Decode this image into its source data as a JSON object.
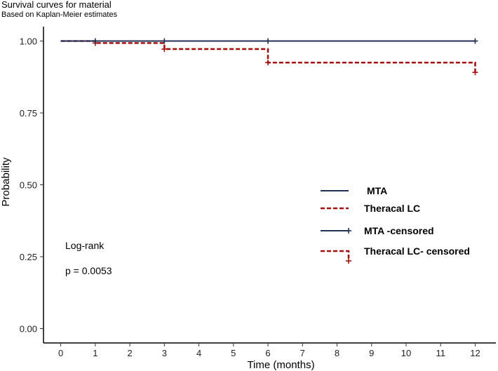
{
  "chart_data": {
    "type": "line",
    "title": "Survival curves for material",
    "subtitle": "Based on Kaplan-Meier estimates",
    "xlabel": "Time (months)",
    "ylabel": "Probability",
    "xlim": [
      -0.5,
      12.6
    ],
    "ylim": [
      -0.05,
      1.05
    ],
    "x_ticks": [
      0,
      1,
      2,
      3,
      4,
      5,
      6,
      7,
      8,
      9,
      10,
      11,
      12
    ],
    "y_ticks": [
      0.0,
      0.25,
      0.5,
      0.75,
      1.0
    ],
    "y_tick_labels": [
      "0.00",
      "0.25",
      "0.50",
      "0.75",
      "1.00"
    ],
    "grid": false,
    "legend_position": "right",
    "series": [
      {
        "name": "MTA",
        "color": "#1f2f57",
        "line_style": "solid",
        "steps": [
          [
            0,
            1.0
          ],
          [
            12,
            1.0
          ]
        ],
        "censored": [
          [
            1,
            1.0
          ],
          [
            3,
            1.0
          ],
          [
            6,
            1.0
          ],
          [
            12,
            1.0
          ]
        ]
      },
      {
        "name": "Theracal LC",
        "color": "#a3120f",
        "line_style": "dashed",
        "steps": [
          [
            0,
            1.0
          ],
          [
            1,
            0.993
          ],
          [
            3,
            0.972
          ],
          [
            6,
            0.925
          ],
          [
            12,
            0.891
          ]
        ],
        "censored": [
          [
            1,
            0.993
          ],
          [
            3,
            0.972
          ],
          [
            6,
            0.925
          ],
          [
            12,
            0.891
          ]
        ]
      }
    ],
    "legend": [
      {
        "label": "MTA",
        "style": "solid",
        "color": "#1f2f57",
        "marker": false
      },
      {
        "label": "Theracal LC",
        "style": "dashed",
        "color": "#a3120f",
        "marker": false
      },
      {
        "label": "MTA -censored",
        "style": "solid",
        "color": "#1f2f57",
        "marker": true
      },
      {
        "label": "Theracal LC- censored",
        "style": "dashed",
        "color": "#a3120f",
        "marker": true
      }
    ],
    "annotations": {
      "test_name": "Log-rank",
      "p_value": "p = 0.0053"
    }
  }
}
